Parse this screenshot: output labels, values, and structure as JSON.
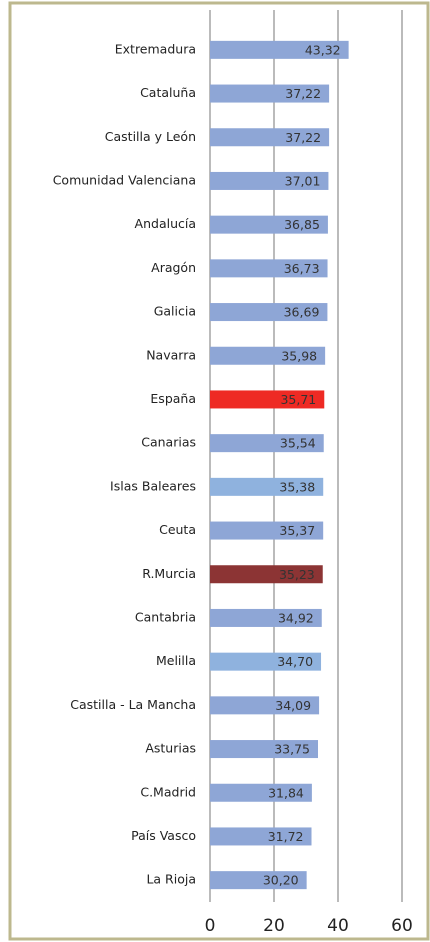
{
  "chart_data": {
    "type": "barh",
    "categories": [
      "Extremadura",
      "Cataluña",
      "Castilla y León",
      "Comunidad Valenciana",
      "Andalucía",
      "Aragón",
      "Galicia",
      "Navarra",
      "España",
      "Canarias",
      "Islas Baleares",
      "Ceuta",
      "R.Murcia",
      "Cantabria",
      "Melilla",
      "Castilla - La Mancha",
      "Asturias",
      "C.Madrid",
      "País Vasco",
      "La Rioja"
    ],
    "values": [
      43.32,
      37.22,
      37.22,
      37.01,
      36.85,
      36.73,
      36.69,
      35.98,
      35.71,
      35.54,
      35.38,
      35.37,
      35.23,
      34.92,
      34.7,
      34.09,
      33.75,
      31.84,
      31.72,
      30.2
    ],
    "value_labels": [
      "43,32",
      "37,22",
      "37,22",
      "37,01",
      "36,85",
      "36,73",
      "36,69",
      "35,98",
      "35,71",
      "35,54",
      "35,38",
      "35,37",
      "35,23",
      "34,92",
      "34,70",
      "34,09",
      "33,75",
      "31,84",
      "31,72",
      "30,20"
    ],
    "colors": [
      "#8ea6d6",
      "#8ea6d6",
      "#8ea6d6",
      "#8ea6d6",
      "#8ea6d6",
      "#8ea6d6",
      "#8ea6d6",
      "#8ea6d6",
      "#ee2a24",
      "#8ea6d6",
      "#8fb2de",
      "#8ea6d6",
      "#8c3434",
      "#8ea6d6",
      "#8fb2de",
      "#8ea6d6",
      "#8ea6d6",
      "#8ea6d6",
      "#8ea6d6",
      "#8ea6d6"
    ],
    "xlim": [
      0,
      60
    ],
    "xticks": [
      0,
      20,
      40,
      60
    ],
    "grid": true
  }
}
